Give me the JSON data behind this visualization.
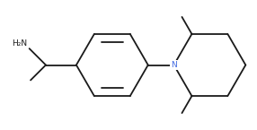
{
  "bg_color": "#ffffff",
  "line_color": "#1a1a1a",
  "N_color": "#4169e1",
  "figsize": [
    2.86,
    1.45
  ],
  "dpi": 100,
  "lw": 1.3
}
